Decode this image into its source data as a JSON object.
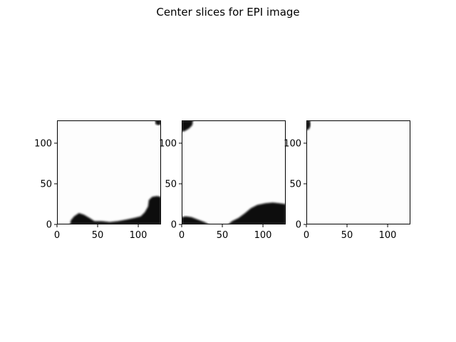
{
  "chart_data": {
    "type": "heatmap",
    "title": "Center slices for EPI image",
    "colormap": "gray",
    "background_color": "#fdfdfd",
    "mask_color": "#080808",
    "xlim": [
      0,
      128
    ],
    "ylim": [
      0,
      128
    ],
    "panels": [
      {
        "xticks": [
          0,
          50,
          100
        ],
        "yticks": [
          0,
          50,
          100
        ],
        "dark_regions": [
          {
            "description": "lower-left to right bottom blob",
            "polygon": [
              [
                16,
                0
              ],
              [
                17,
                5
              ],
              [
                21,
                10
              ],
              [
                27,
                14
              ],
              [
                33,
                12
              ],
              [
                40,
                8
              ],
              [
                46,
                4
              ],
              [
                55,
                4
              ],
              [
                65,
                3
              ],
              [
                75,
                4
              ],
              [
                85,
                6
              ],
              [
                95,
                8
              ],
              [
                103,
                10
              ],
              [
                108,
                15
              ],
              [
                112,
                22
              ],
              [
                113,
                30
              ],
              [
                117,
                34
              ],
              [
                123,
                35
              ],
              [
                128,
                34
              ],
              [
                128,
                0
              ]
            ]
          },
          {
            "description": "top-right corner speck",
            "polygon": [
              [
                121,
                128
              ],
              [
                121,
                124
              ],
              [
                124,
                122
              ],
              [
                128,
                123
              ],
              [
                128,
                128
              ]
            ]
          }
        ]
      },
      {
        "xticks": [
          0,
          50,
          100
        ],
        "yticks": [
          0,
          50,
          100
        ],
        "dark_regions": [
          {
            "description": "top-left corner blob",
            "polygon": [
              [
                0,
                128
              ],
              [
                0,
                114
              ],
              [
                4,
                115
              ],
              [
                9,
                118
              ],
              [
                13,
                122
              ],
              [
                14,
                128
              ]
            ]
          },
          {
            "description": "bottom-left blob",
            "polygon": [
              [
                0,
                0
              ],
              [
                0,
                9
              ],
              [
                5,
                10
              ],
              [
                12,
                9
              ],
              [
                20,
                6
              ],
              [
                28,
                3
              ],
              [
                34,
                0
              ]
            ]
          },
          {
            "description": "bottom-right blob",
            "polygon": [
              [
                57,
                0
              ],
              [
                62,
                4
              ],
              [
                70,
                8
              ],
              [
                78,
                14
              ],
              [
                85,
                20
              ],
              [
                93,
                24
              ],
              [
                103,
                26
              ],
              [
                112,
                27
              ],
              [
                120,
                26
              ],
              [
                128,
                25
              ],
              [
                128,
                0
              ]
            ]
          }
        ]
      },
      {
        "xticks": [
          0,
          50,
          100
        ],
        "yticks": [
          0,
          50,
          100
        ],
        "dark_regions": [
          {
            "description": "top-left corner speck",
            "polygon": [
              [
                0,
                128
              ],
              [
                0,
                116
              ],
              [
                3,
                117
              ],
              [
                5,
                121
              ],
              [
                5,
                126
              ],
              [
                4,
                128
              ]
            ]
          }
        ]
      }
    ]
  }
}
